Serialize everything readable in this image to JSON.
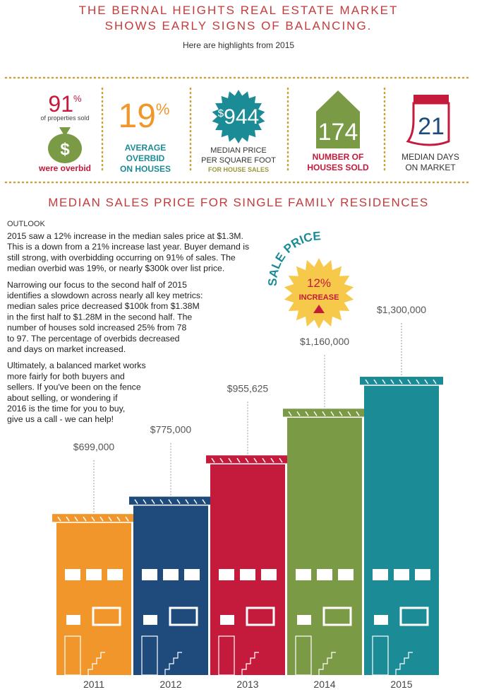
{
  "header": {
    "title_lines": [
      "THE BERNAL HEIGHTS REAL ESTATE MARKET",
      "SHOWS EARLY SIGNS OF BALANCING."
    ],
    "subtitle": "Here are highlights from 2015"
  },
  "stats": [
    {
      "number": "91",
      "unit": "%",
      "note": "of properties sold",
      "label_lines": [
        "were overbid"
      ]
    },
    {
      "number": "19",
      "unit": "%",
      "label_lines": [
        "AVERAGE",
        "OVERBID",
        "ON HOUSES"
      ]
    },
    {
      "number": "944",
      "unit": "$",
      "label_lines": [
        "MEDIAN PRICE",
        "PER SQUARE FOOT"
      ],
      "note": "FOR HOUSE SALES"
    },
    {
      "number": "174",
      "label_lines": [
        "NUMBER OF",
        "HOUSES SOLD"
      ]
    },
    {
      "number": "21",
      "label_lines": [
        "MEDIAN DAYS",
        "ON MARKET"
      ]
    }
  ],
  "section_title": "MEDIAN SALES PRICE FOR SINGLE FAMILY RESIDENCES",
  "outlook": {
    "heading": "OUTLOOK",
    "paragraphs": [
      [
        "2015 saw a 12% increase in the median sales price at $1.3M.",
        "This is a down from a 21% increase last year.  Buyer demand is",
        "still strong, with overbidding occurring on 91% of sales. The",
        "median overbid was 19%, or nearly $300k over list price."
      ],
      [
        "Narrowing our focus to the second half of 2015",
        "identifies a slowdown across nearly all key metrics:",
        "median sales price decreased $100k from $1.38M",
        "in the first half to $1.28M in the second half.  The",
        "number of houses sold increased 25% from 78",
        "to 97. The percentage of overbids decreased",
        "and days on market increased."
      ],
      [
        "Ultimately, a balanced market works",
        "more fairly for both buyers and",
        "sellers.  If you've been on the fence",
        "about selling, or wondering if",
        "2016 is the time for you to buy,",
        "give us a call - we can help!"
      ]
    ]
  },
  "badge": {
    "arc_text": "SALE PRICE",
    "value": "12%",
    "label": "INCREASE"
  },
  "chart_data": {
    "type": "bar",
    "categories": [
      "2011",
      "2012",
      "2013",
      "2014",
      "2015"
    ],
    "values": [
      699000,
      775000,
      955625,
      1160000,
      1300000
    ],
    "value_labels": [
      "$699,000",
      "$775,000",
      "$955,625",
      "$1,160,000",
      "$1,300,000"
    ],
    "colors": [
      "#f0962a",
      "#1f4a7c",
      "#c41a3c",
      "#7b9a46",
      "#1b8b96"
    ]
  }
}
